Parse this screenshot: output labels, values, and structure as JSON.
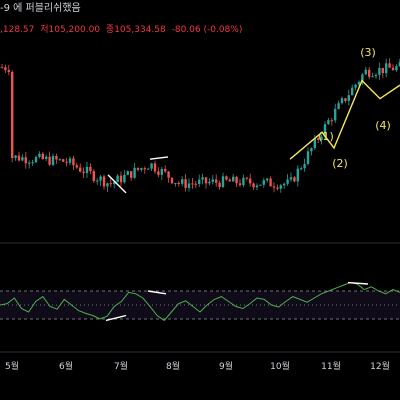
{
  "header": {
    "title_fragment": "-9 에 퍼블리쉬했음",
    "ohlc": {
      "high_fragment": ",128.57",
      "low": "저105,200.00",
      "close": "종105,334.58",
      "change": "-80.06 (-0.08%)"
    }
  },
  "chart_data": [
    {
      "type": "candlestick",
      "title": "",
      "xlabel": "",
      "ylabel": "",
      "x_ticks": [
        "5월",
        "6월",
        "7월",
        "8월",
        "9월",
        "10월",
        "11월",
        "12월"
      ],
      "close_trend": [
        {
          "x": "5월",
          "y": 101.2
        },
        {
          "x": "6월",
          "y": 101.0
        },
        {
          "x": "7월",
          "y": 100.0
        },
        {
          "x": "7월 중순",
          "y": 100.9
        },
        {
          "x": "8월",
          "y": 100.0
        },
        {
          "x": "9월",
          "y": 100.1
        },
        {
          "x": "10월",
          "y": 100.0
        },
        {
          "x": "11월",
          "y": 102.9
        },
        {
          "x": "11월 중순",
          "y": 105.0
        },
        {
          "x": "12월",
          "y": 105.2
        }
      ],
      "annotations": [
        "(1)",
        "(2)",
        "(3)",
        "(4)"
      ],
      "colors": {
        "up": "#26a69a",
        "down": "#ef5350",
        "wave": "#f5e663",
        "divergence": "#ffffff"
      }
    },
    {
      "type": "line",
      "title": "",
      "xlabel": "",
      "ylabel": "",
      "ylim": [
        0,
        100
      ],
      "reference_lines": [
        70,
        50,
        30
      ],
      "values": [
        50,
        52,
        60,
        45,
        40,
        55,
        62,
        48,
        44,
        58,
        50,
        42,
        38,
        35,
        30,
        34,
        48,
        55,
        68,
        66,
        60,
        48,
        35,
        28,
        40,
        52,
        56,
        48,
        40,
        50,
        58,
        62,
        55,
        48,
        45,
        52,
        60,
        58,
        50,
        47,
        55,
        62,
        58,
        54,
        60,
        66,
        70,
        74,
        78,
        82,
        80,
        72,
        76,
        70,
        66,
        72,
        68
      ],
      "colors": {
        "line": "#4caf50",
        "band": "rgba(126, 87, 194, 0.12)",
        "divergence": "#ffffff"
      }
    }
  ]
}
